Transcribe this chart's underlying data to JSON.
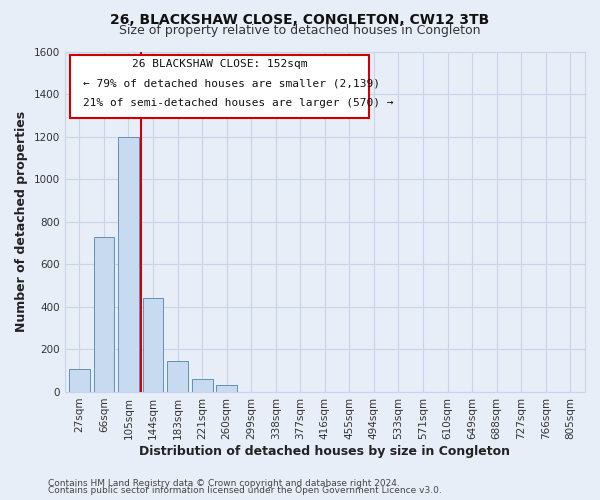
{
  "title": "26, BLACKSHAW CLOSE, CONGLETON, CW12 3TB",
  "subtitle": "Size of property relative to detached houses in Congleton",
  "xlabel": "Distribution of detached houses by size in Congleton",
  "ylabel": "Number of detached properties",
  "bar_labels": [
    "27sqm",
    "66sqm",
    "105sqm",
    "144sqm",
    "183sqm",
    "221sqm",
    "260sqm",
    "299sqm",
    "338sqm",
    "377sqm",
    "416sqm",
    "455sqm",
    "494sqm",
    "533sqm",
    "571sqm",
    "610sqm",
    "649sqm",
    "688sqm",
    "727sqm",
    "766sqm",
    "805sqm"
  ],
  "bar_values": [
    110,
    730,
    1200,
    440,
    145,
    60,
    35,
    0,
    0,
    0,
    0,
    0,
    0,
    0,
    0,
    0,
    0,
    0,
    0,
    0,
    0
  ],
  "bar_color": "#c8daf0",
  "bar_edge_color": "#6090c0",
  "ylim": [
    0,
    1600
  ],
  "yticks": [
    0,
    200,
    400,
    600,
    800,
    1000,
    1200,
    1400,
    1600
  ],
  "property_line_color": "#cc0000",
  "ann_line1": "26 BLACKSHAW CLOSE: 152sqm",
  "ann_line2": "← 79% of detached houses are smaller (2,139)",
  "ann_line3": "21% of semi-detached houses are larger (570) →",
  "footer_line1": "Contains HM Land Registry data © Crown copyright and database right 2024.",
  "footer_line2": "Contains public sector information licensed under the Open Government Licence v3.0.",
  "fig_bg_color": "#e8eef8",
  "ax_bg_color": "#e8eef8",
  "grid_color": "#c8d4e8",
  "title_fontsize": 10,
  "subtitle_fontsize": 9,
  "axis_label_fontsize": 9,
  "tick_fontsize": 7.5,
  "ann_fontsize": 8,
  "footer_fontsize": 6.5
}
